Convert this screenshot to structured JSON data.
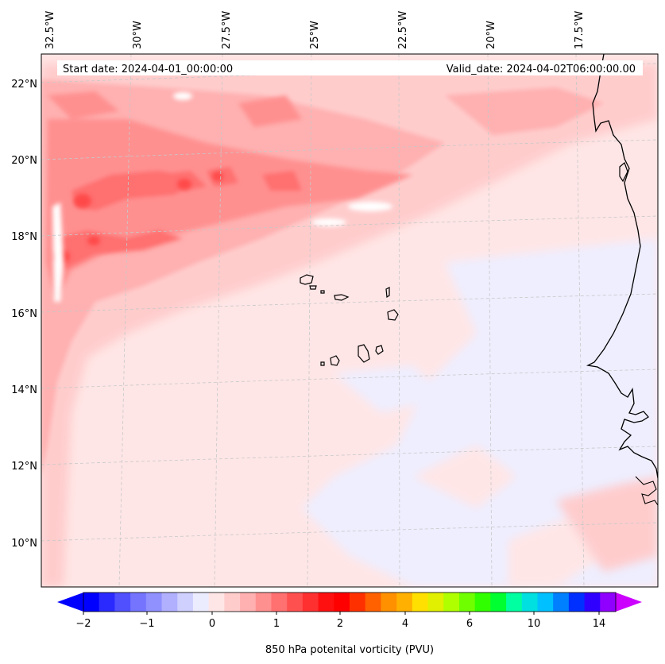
{
  "header": {
    "start_label": "Start date: 2024-04-01_00:00:00",
    "valid_label": "Valid_date: 2024-04-02T06:00:00.00"
  },
  "map": {
    "projection": "lambert-conformal",
    "region": "Cape Verde / West Africa coast",
    "lon_labels": [
      "32.5°W",
      "30°W",
      "27.5°W",
      "25°W",
      "22.5°W",
      "20°W",
      "17.5°W"
    ],
    "lat_labels": [
      "22°N",
      "20°N",
      "18°N",
      "16°N",
      "14°N",
      "12°N",
      "10°N"
    ],
    "coastline_color": "#000000",
    "gridline_color": "#c8c8c8"
  },
  "colorbar": {
    "title": "850 hPa potenital vorticity (PVU)",
    "ticks": [
      "−2",
      "−1",
      "0",
      "1",
      "2",
      "4",
      "6",
      "10",
      "14"
    ],
    "colors": [
      "#0000ff",
      "#2a2aff",
      "#5050ff",
      "#7474ff",
      "#9090ff",
      "#b0b0ff",
      "#d0d0ff",
      "#ececff",
      "#ffe6e6",
      "#ffcccc",
      "#ffb0b0",
      "#ff9090",
      "#ff7070",
      "#ff5050",
      "#ff3030",
      "#ff1010",
      "#ff0000",
      "#ff3000",
      "#ff6000",
      "#ff9000",
      "#ffb000",
      "#ffe000",
      "#e0f000",
      "#b0ff00",
      "#70ff00",
      "#30ff00",
      "#00ff30",
      "#00ffa0",
      "#00e0e0",
      "#00c0ff",
      "#0080ff",
      "#0030ff",
      "#3000ff",
      "#9000ff"
    ],
    "under_color": "#0000ff",
    "over_color": "#cc00ff"
  }
}
